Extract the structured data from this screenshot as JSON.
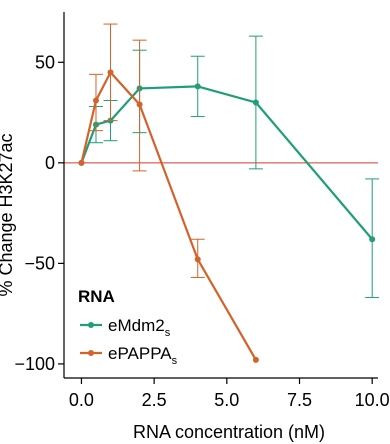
{
  "chart_data": {
    "type": "line",
    "xlabel": "RNA concentration (nM)",
    "ylabel": "% Change H3K27ac",
    "xlim": [
      -0.6,
      10.2
    ],
    "ylim": [
      -107,
      75
    ],
    "x_ticks": [
      0,
      2.5,
      5,
      7.5,
      10
    ],
    "x_tick_labels": [
      "0.0",
      "2.5",
      "5.0",
      "7.5",
      "10.0"
    ],
    "y_ticks": [
      50,
      0,
      -50,
      -100
    ],
    "y_tick_labels": [
      "50",
      "0",
      "−50",
      "−100"
    ],
    "reference_line": {
      "y": 0,
      "color": "#d03a35"
    },
    "grid": false,
    "legend": {
      "title": "RNA",
      "placement": "bottom-left",
      "entries": [
        {
          "base": "eMdm2",
          "sub": "s",
          "color": "#1f9e78"
        },
        {
          "base": "ePAPPA",
          "sub": "s",
          "color": "#d4622a"
        }
      ]
    },
    "series": [
      {
        "name": "eMdm2s",
        "color": "#1f9e78",
        "points": [
          {
            "x": 0,
            "y": 0
          },
          {
            "x": 0.5,
            "y": 19,
            "err_low": 10,
            "err_high": 28
          },
          {
            "x": 1,
            "y": 21,
            "err_low": 11,
            "err_high": 31
          },
          {
            "x": 2,
            "y": 37,
            "err_low": 15,
            "err_high": 56
          },
          {
            "x": 4,
            "y": 38,
            "err_low": 23,
            "err_high": 53
          },
          {
            "x": 6,
            "y": 30,
            "err_low": -3,
            "err_high": 63
          },
          {
            "x": 10,
            "y": -38,
            "err_low": -67,
            "err_high": -8
          }
        ]
      },
      {
        "name": "ePAPPAs",
        "color": "#d4622a",
        "points": [
          {
            "x": 0,
            "y": 0
          },
          {
            "x": 0.5,
            "y": 31,
            "err_low": 16,
            "err_high": 44
          },
          {
            "x": 1,
            "y": 45,
            "err_low": 21,
            "err_high": 69
          },
          {
            "x": 2,
            "y": 29,
            "err_low": -4,
            "err_high": 61
          },
          {
            "x": 4,
            "y": -48,
            "err_low": -57,
            "err_high": -38
          },
          {
            "x": 6,
            "y": -98
          }
        ]
      }
    ]
  }
}
